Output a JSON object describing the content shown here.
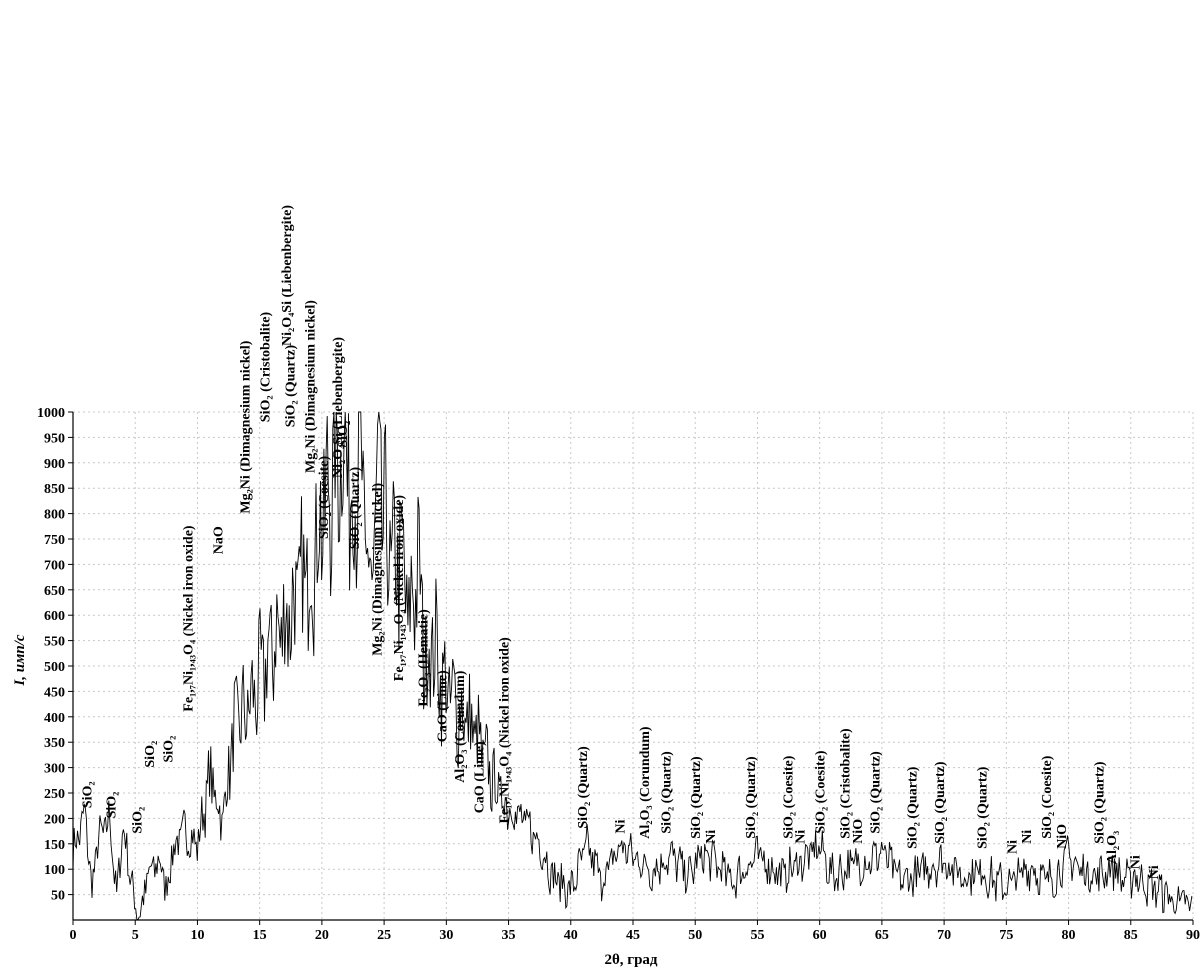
{
  "chart_data": {
    "type": "line",
    "xlabel": "2θ, град",
    "ylabel": "I, имп/с",
    "xlim": [
      0,
      90
    ],
    "ylim": [
      0,
      1000
    ],
    "x_ticks": [
      "0",
      "5",
      "10",
      "15",
      "20",
      "25",
      "30",
      "35",
      "40",
      "45",
      "50",
      "55",
      "60",
      "65",
      "70",
      "75",
      "80",
      "85",
      "90"
    ],
    "y_ticks": [
      "50",
      "100",
      "150",
      "200",
      "250",
      "300",
      "350",
      "400",
      "450",
      "500",
      "550",
      "600",
      "650",
      "700",
      "750",
      "800",
      "850",
      "900",
      "950",
      "1000"
    ],
    "grid": true,
    "series": [
      {
        "color": "#000000",
        "x": [
          0,
          1,
          1.5,
          2,
          3,
          3.5,
          4,
          5,
          5.5,
          6,
          7,
          7.5,
          8,
          9,
          10,
          11,
          12,
          13,
          14,
          15,
          16,
          17,
          18,
          19,
          19.8,
          20.5,
          21.2,
          21.8,
          22.3,
          22.7,
          23,
          23.5,
          24,
          24.6,
          25.2,
          25.8,
          26.3,
          27,
          27.7,
          28.3,
          29,
          29.7,
          30.3,
          31,
          31.8,
          32.4,
          33,
          33.6,
          34.4,
          35.2,
          36,
          36.8,
          37.6,
          38.5,
          40,
          41.3,
          42.5,
          44,
          45.5,
          46.5,
          48,
          49.5,
          50.5,
          51.5,
          53,
          55,
          57,
          58,
          59.2,
          60,
          61,
          62.5,
          64,
          65,
          66.5,
          67.7,
          69,
          70,
          71.5,
          73,
          74,
          75,
          76,
          77,
          78,
          79,
          80,
          81,
          82.5,
          83.5,
          84.5,
          85.5,
          86.5,
          87.5,
          88.5,
          90
        ],
        "y": [
          140,
          210,
          60,
          160,
          200,
          40,
          190,
          30,
          20,
          90,
          120,
          60,
          140,
          180,
          150,
          290,
          200,
          390,
          420,
          480,
          550,
          600,
          650,
          700,
          790,
          850,
          950,
          980,
          850,
          880,
          970,
          720,
          700,
          880,
          760,
          700,
          740,
          600,
          720,
          520,
          560,
          480,
          450,
          420,
          400,
          370,
          330,
          290,
          250,
          230,
          200,
          180,
          150,
          90,
          60,
          150,
          80,
          150,
          120,
          100,
          130,
          90,
          130,
          120,
          80,
          130,
          90,
          110,
          130,
          150,
          90,
          110,
          120,
          140,
          80,
          90,
          110,
          120,
          90,
          100,
          80,
          70,
          90,
          110,
          80,
          90,
          130,
          100,
          90,
          110,
          80,
          90,
          70,
          60,
          40,
          30
        ]
      }
    ],
    "annotations": [
      {
        "x": 1.5,
        "y": 220,
        "label": "SiO₂"
      },
      {
        "x": 3.4,
        "y": 200,
        "label": "SiO₂"
      },
      {
        "x": 5.5,
        "y": 170,
        "label": "SiO₂"
      },
      {
        "x": 6.5,
        "y": 300,
        "label": "SiO₂"
      },
      {
        "x": 8.0,
        "y": 310,
        "label": "SiO₂"
      },
      {
        "x": 9.6,
        "y": 410,
        "label": "Fe₁,₇Ni₁,₄₃O₄ (Nickel iron oxide)"
      },
      {
        "x": 12.0,
        "y": 720,
        "label": "NaO"
      },
      {
        "x": 14.2,
        "y": 800,
        "label": "Mg₂Ni (Dimagnesium nickel)"
      },
      {
        "x": 15.8,
        "y": 980,
        "label": "SiO₂ (Cristobalite)"
      },
      {
        "x": 17.5,
        "y": 1130,
        "label": "Ni₂O₄Si (Liebenbergite)"
      },
      {
        "x": 17.8,
        "y": 970,
        "label": "SiO₂ (Quartz)"
      },
      {
        "x": 19.4,
        "y": 880,
        "label": "Mg₂Ni (Dimagnesium nickel)"
      },
      {
        "x": 20.5,
        "y": 750,
        "label": "SiO₂ (Coesite)"
      },
      {
        "x": 21.6,
        "y": 870,
        "label": "Ni₂O₄Si (Liebenbergite)"
      },
      {
        "x": 22.0,
        "y": 930,
        "label": "SiO₂"
      },
      {
        "x": 23.0,
        "y": 730,
        "label": "SiO₂ (Quartz)"
      },
      {
        "x": 24.8,
        "y": 520,
        "label": "Mg₂Ni (Dimagnesium nickel)"
      },
      {
        "x": 26.5,
        "y": 470,
        "label": "Fe₁,₇Ni₁,₄₃O₄ (Nickel iron oxide)"
      },
      {
        "x": 28.5,
        "y": 420,
        "label": "Fe₂O₃ (Hematie)"
      },
      {
        "x": 30.0,
        "y": 350,
        "label": "CaO (Lime)"
      },
      {
        "x": 31.4,
        "y": 270,
        "label": "Al₂O₃ (Corundum)"
      },
      {
        "x": 33.0,
        "y": 210,
        "label": "CaO (Lime)"
      },
      {
        "x": 35.0,
        "y": 190,
        "label": "Fe₁,₇Ni₁,₄₃O₄ (Nickel iron oxide)"
      },
      {
        "x": 41.3,
        "y": 180,
        "label": "SiO₂ (Quartz)"
      },
      {
        "x": 44.3,
        "y": 170,
        "label": "Ni"
      },
      {
        "x": 46.3,
        "y": 160,
        "label": "Al₂O₃ (Corundum)"
      },
      {
        "x": 48.0,
        "y": 170,
        "label": "SiO₂ (Quartz)"
      },
      {
        "x": 50.4,
        "y": 160,
        "label": "SiO₂ (Quartz)"
      },
      {
        "x": 51.6,
        "y": 150,
        "label": "Ni"
      },
      {
        "x": 54.8,
        "y": 160,
        "label": "SiO₂ (Quartz)"
      },
      {
        "x": 57.8,
        "y": 160,
        "label": "SiO₂ (Coesite)"
      },
      {
        "x": 58.8,
        "y": 150,
        "label": "Ni"
      },
      {
        "x": 60.4,
        "y": 170,
        "label": "SiO₂ (Coesite)"
      },
      {
        "x": 62.4,
        "y": 160,
        "label": "SiO₂ (Cristobalite)"
      },
      {
        "x": 63.4,
        "y": 150,
        "label": "NiO"
      },
      {
        "x": 64.8,
        "y": 170,
        "label": "SiO₂ (Quartz)"
      },
      {
        "x": 67.8,
        "y": 140,
        "label": "SiO₂ (Quartz)"
      },
      {
        "x": 70.0,
        "y": 150,
        "label": "SiO₂ (Quartz)"
      },
      {
        "x": 73.4,
        "y": 140,
        "label": "SiO₂ (Quartz)"
      },
      {
        "x": 75.8,
        "y": 130,
        "label": "Ni"
      },
      {
        "x": 77.0,
        "y": 150,
        "label": "Ni"
      },
      {
        "x": 78.6,
        "y": 160,
        "label": "SiO₂ (Coesite)"
      },
      {
        "x": 79.8,
        "y": 140,
        "label": "NiO"
      },
      {
        "x": 82.8,
        "y": 150,
        "label": "SiO₂ (Quartz)"
      },
      {
        "x": 83.8,
        "y": 110,
        "label": "Al₂O₃"
      },
      {
        "x": 85.7,
        "y": 100,
        "label": "Ni"
      },
      {
        "x": 87.2,
        "y": 80,
        "label": "Ni"
      }
    ]
  }
}
